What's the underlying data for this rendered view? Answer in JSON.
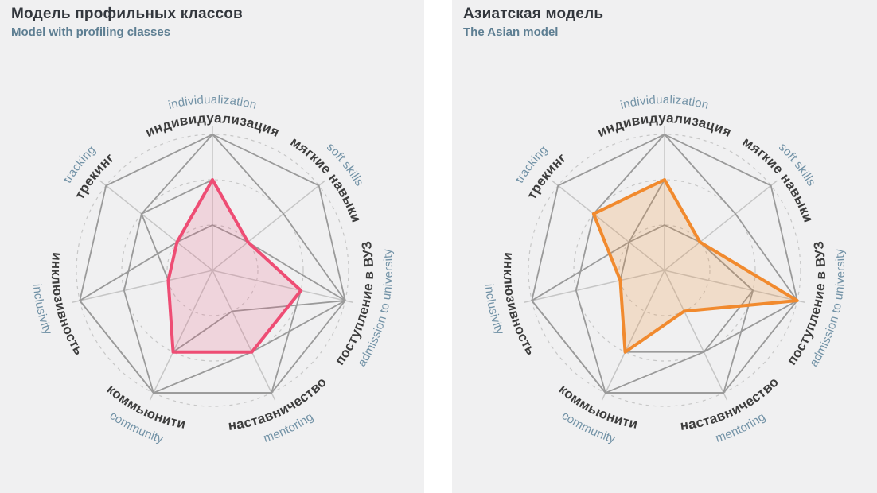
{
  "page": {
    "background": "#ffffff",
    "panel_background": "#f0f0f1"
  },
  "panels": [
    {
      "title": "Модель профильных классов",
      "subtitle": "Model with profiling classes",
      "highlight_index": 0
    },
    {
      "title": "Азиатская модель",
      "subtitle": "The Asian model",
      "highlight_index": 1
    }
  ],
  "chart_data": {
    "type": "radar",
    "scale": {
      "min": 0,
      "max": 3,
      "rings": [
        1,
        2,
        3
      ]
    },
    "layout": {
      "axis_start_deg": 90,
      "direction": "clockwise",
      "grid": "dashed-circles",
      "legend": "none",
      "background_series_style": "gray-web"
    },
    "axes": [
      {
        "ru": "индивидуализация",
        "en": "individualization"
      },
      {
        "ru": "мягкие навыки",
        "en": "soft skills"
      },
      {
        "ru": "поступление в ВУЗ",
        "en": "admission to university"
      },
      {
        "ru": "наставничество",
        "en": "mentoring"
      },
      {
        "ru": "коммьюнити",
        "en": "community"
      },
      {
        "ru": "инклюзивность",
        "en": "inclusivity"
      },
      {
        "ru": "трекинг",
        "en": "tracking"
      }
    ],
    "series": [
      {
        "name": "Модель профильных классов",
        "values": [
          2,
          1,
          2,
          2,
          2,
          1,
          1
        ],
        "color": "#ee4d74",
        "fill": "rgba(238,77,116,0.17)",
        "role": "highlight"
      },
      {
        "name": "Азиатская модель",
        "values": [
          2,
          1,
          3,
          1,
          2,
          1,
          2
        ],
        "color": "#f18a2e",
        "fill": "rgba(241,138,46,0.20)",
        "role": "highlight"
      },
      {
        "name": "background-model-1",
        "values": [
          3,
          3,
          3,
          2,
          3,
          2,
          2
        ],
        "color": "#9a9a9a",
        "role": "background"
      },
      {
        "name": "background-model-2",
        "values": [
          3,
          2,
          3,
          3,
          3,
          3,
          3
        ],
        "color": "#9a9a9a",
        "role": "background"
      },
      {
        "name": "background-model-3",
        "values": [
          1,
          1,
          2,
          3,
          3,
          3,
          1
        ],
        "color": "#9a9a9a",
        "role": "background"
      }
    ],
    "style": {
      "grid_color": "#c7c7c7",
      "spoke_color": "#c6c6c6",
      "outline_color": "#c3c3c3",
      "background_line_color": "#9a9a9a",
      "highlight_stroke_width": 4
    }
  },
  "text_colors": {
    "title": "#33373d",
    "subtitle": "#5d7e92",
    "axis_ru": "#3d3d3d",
    "axis_en": "#7292a6"
  }
}
